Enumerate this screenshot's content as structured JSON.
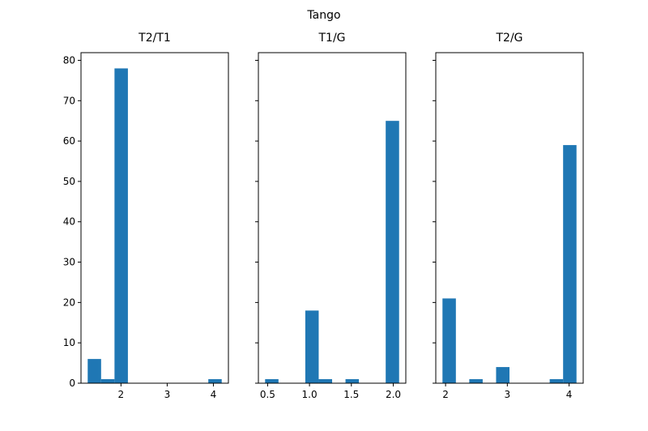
{
  "title": "Tango",
  "chart_data": [
    {
      "type": "histogram",
      "title": "T2/T1",
      "color": "#1f77b4",
      "bins": [
        1.28,
        1.57,
        1.86,
        2.15,
        2.44,
        2.73,
        3.02,
        3.31,
        3.6,
        3.89,
        4.18
      ],
      "values": [
        6,
        1,
        78,
        0,
        0,
        0,
        0,
        0,
        0,
        1
      ],
      "xlim": [
        1.135,
        4.325
      ],
      "xticks": [
        2,
        3,
        4
      ],
      "ylim": [
        0,
        81.9
      ],
      "yticks": [
        0,
        10,
        20,
        30,
        40,
        50,
        60,
        70,
        80
      ]
    },
    {
      "type": "histogram",
      "title": "T1/G",
      "color": "#1f77b4",
      "bins": [
        0.47,
        0.63,
        0.79,
        0.95,
        1.11,
        1.27,
        1.43,
        1.59,
        1.75,
        1.91,
        2.07
      ],
      "values": [
        1,
        0,
        0,
        18,
        1,
        0,
        1,
        0,
        0,
        65
      ],
      "xlim": [
        0.39,
        2.15
      ],
      "xticks": [
        0.5,
        {
          "value": 1,
          "label": "1.0"
        },
        1.5,
        {
          "value": 2,
          "label": "2.0"
        }
      ],
      "ylim": [
        0,
        81.9
      ]
    },
    {
      "type": "histogram",
      "title": "T2/G",
      "color": "#1f77b4",
      "bins": [
        1.95,
        2.167,
        2.384,
        2.601,
        2.818,
        3.035,
        3.252,
        3.469,
        3.686,
        3.903,
        4.12
      ],
      "values": [
        21,
        0,
        1,
        0,
        4,
        0,
        0,
        0,
        1,
        59
      ],
      "xlim": [
        1.8415,
        4.2285
      ],
      "xticks": [
        2,
        3,
        4
      ],
      "ylim": [
        0,
        81.9
      ]
    }
  ]
}
